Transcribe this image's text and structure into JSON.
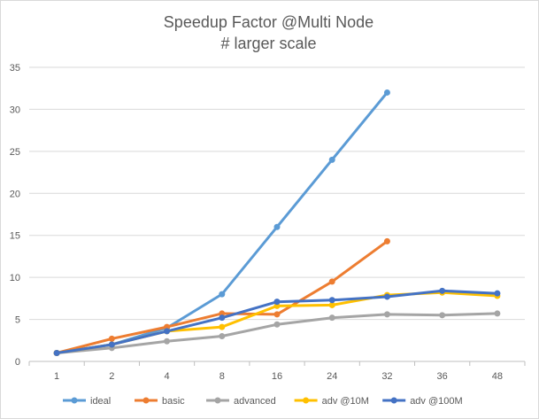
{
  "chart_data": {
    "type": "line",
    "title": "Speedup Factor @Multi Node",
    "subtitle": "# larger scale",
    "categories": [
      "1",
      "2",
      "4",
      "8",
      "16",
      "24",
      "32",
      "36",
      "48"
    ],
    "ylim": [
      0,
      35
    ],
    "yticks": [
      0,
      5,
      10,
      15,
      20,
      25,
      30,
      35
    ],
    "grid": true,
    "legend": "bottom",
    "series": [
      {
        "name": "ideal",
        "color": "#5b9bd5",
        "values": [
          1,
          2,
          4,
          8,
          16,
          24,
          32,
          null,
          null
        ]
      },
      {
        "name": "basic",
        "color": "#ed7d31",
        "values": [
          1,
          2.7,
          4.1,
          5.7,
          5.6,
          9.5,
          14.3,
          null,
          null
        ]
      },
      {
        "name": "advanced",
        "color": "#a5a5a5",
        "values": [
          1,
          1.6,
          2.4,
          3.0,
          4.4,
          5.2,
          5.6,
          5.5,
          5.7
        ]
      },
      {
        "name": "adv @10M",
        "color": "#ffc000",
        "values": [
          1,
          2.0,
          3.6,
          4.1,
          6.6,
          6.7,
          7.9,
          8.2,
          7.8
        ]
      },
      {
        "name": "adv @100M",
        "color": "#4472c4",
        "values": [
          1,
          2.0,
          3.6,
          5.2,
          7.1,
          7.3,
          7.7,
          8.4,
          8.1
        ]
      }
    ]
  }
}
